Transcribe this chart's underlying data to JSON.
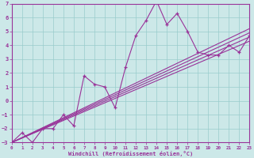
{
  "xlabel": "Windchill (Refroidissement éolien,°C)",
  "bg_color": "#cce8e8",
  "line_color": "#993399",
  "grid_color": "#99cccc",
  "xmin": 0,
  "xmax": 23,
  "ymin": -3,
  "ymax": 7,
  "main_series_x": [
    0,
    1,
    2,
    3,
    4,
    5,
    6,
    7,
    8,
    9,
    10,
    11,
    12,
    13,
    14,
    15,
    16,
    17,
    18,
    19,
    20,
    21,
    22,
    23
  ],
  "main_series_y": [
    -3,
    -2.3,
    -3,
    -2,
    -2,
    -1.0,
    -1.8,
    1.8,
    1.2,
    1.0,
    -0.5,
    2.4,
    4.7,
    5.8,
    7.2,
    5.5,
    6.3,
    5.0,
    3.5,
    3.3,
    3.3,
    4.0,
    3.5,
    4.7
  ],
  "straight_lines": [
    [
      [
        0,
        -3.0
      ],
      [
        23,
        4.3
      ]
    ],
    [
      [
        0,
        -3.0
      ],
      [
        23,
        4.6
      ]
    ],
    [
      [
        0,
        -3.0
      ],
      [
        23,
        4.9
      ]
    ],
    [
      [
        0,
        -3.0
      ],
      [
        23,
        5.2
      ]
    ]
  ]
}
